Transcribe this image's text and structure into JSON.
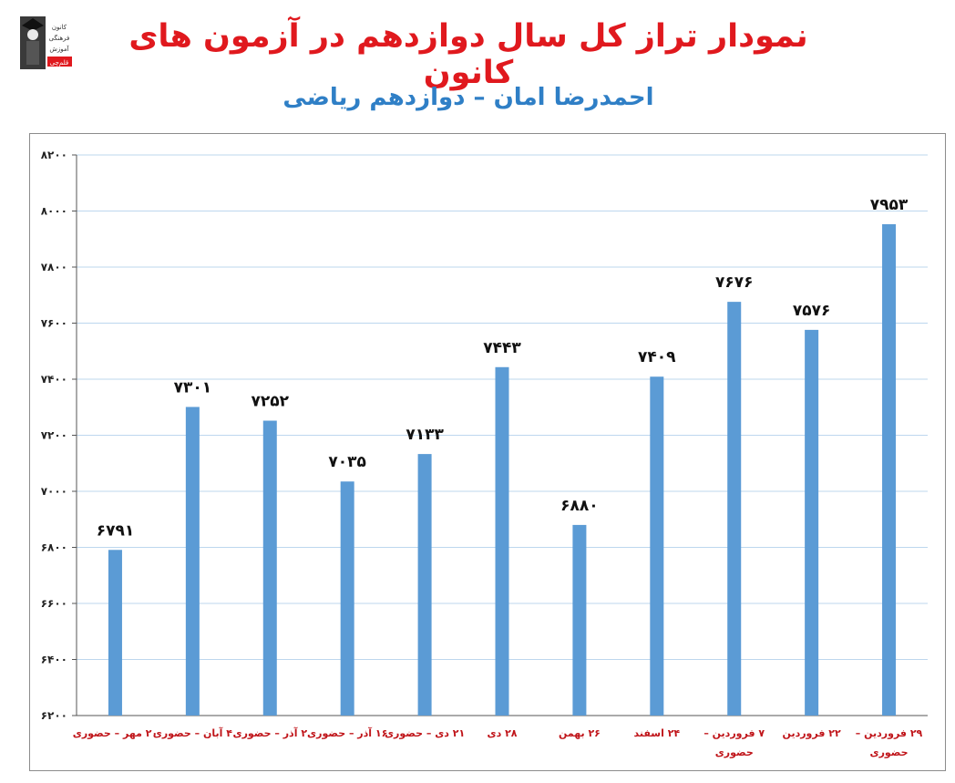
{
  "header": {
    "title": "نمودار تراز کل سال دوازدهم در آزمون های کانون",
    "subtitle": "احمدرضا امان – دوازدهم ریاضی",
    "logo_lines": [
      "کانون",
      "فرهنگی",
      "آموزش",
      "قلم‌چی"
    ]
  },
  "colors": {
    "bar": "#5b9bd5",
    "title": "#e0191e",
    "subtitle": "#2f7fc6",
    "xtick": "#c0151a",
    "grid": "#bdd7ee"
  },
  "chart_data": {
    "type": "bar",
    "categories": [
      "۲۰ مهر – حضوری",
      "۴ آبان – حضوری",
      "۲ آذر – حضوری",
      "۱۶ آذر – حضوری",
      "۲۱ دی – حضوری",
      "۲۸ دی",
      "۲۶ بهمن",
      "۲۴ اسفند",
      "۷ فروردین – حضوری",
      "۲۲ فروردین",
      "۲۹ فروردین – حضوری"
    ],
    "values": [
      6791,
      7301,
      7252,
      7035,
      7133,
      7443,
      6880,
      7409,
      7676,
      7576,
      7953
    ],
    "value_labels": [
      "۶۷۹۱",
      "۷۳۰۱",
      "۷۲۵۲",
      "۷۰۳۵",
      "۷۱۳۳",
      "۷۴۴۳",
      "۶۸۸۰",
      "۷۴۰۹",
      "۷۶۷۶",
      "۷۵۷۶",
      "۷۹۵۳"
    ],
    "ylim": [
      6200,
      8200
    ],
    "yticks": [
      6200,
      6400,
      6600,
      6800,
      7000,
      7200,
      7400,
      7600,
      7800,
      8000,
      8200
    ],
    "ytick_labels": [
      "۶۲۰۰",
      "۶۴۰۰",
      "۶۶۰۰",
      "۶۸۰۰",
      "۷۰۰۰",
      "۷۲۰۰",
      "۷۴۰۰",
      "۷۶۰۰",
      "۷۸۰۰",
      "۸۰۰۰",
      "۸۲۰۰"
    ],
    "grid": true,
    "legend": "none"
  }
}
